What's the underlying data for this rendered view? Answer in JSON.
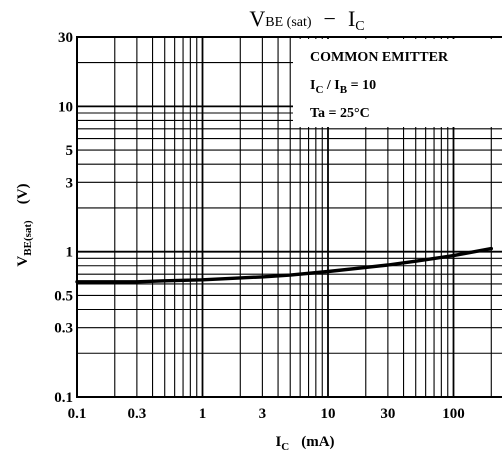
{
  "chart_data": {
    "type": "line",
    "title": {
      "main": "V",
      "main_sub": "BE (sat)",
      "dash": "−",
      "var": "I",
      "var_sub": "C"
    },
    "xlabel": {
      "main": "I",
      "sub": "C",
      "unit": "(mA)"
    },
    "ylabel": {
      "main": "V",
      "sub": "BE(sat)",
      "unit": "(V)"
    },
    "x_scale": "log",
    "y_scale": "log",
    "xlim": [
      0.1,
      200
    ],
    "ylim": [
      0.1,
      30
    ],
    "x_ticks": [
      {
        "value": 0.1,
        "label": "0.1"
      },
      {
        "value": 0.3,
        "label": "0.3"
      },
      {
        "value": 1,
        "label": "1"
      },
      {
        "value": 3,
        "label": "3"
      },
      {
        "value": 10,
        "label": "10"
      },
      {
        "value": 30,
        "label": "30"
      },
      {
        "value": 100,
        "label": "100"
      }
    ],
    "y_ticks": [
      {
        "value": 0.1,
        "label": "0.1"
      },
      {
        "value": 0.3,
        "label": "0.3"
      },
      {
        "value": 0.5,
        "label": "0.5"
      },
      {
        "value": 1,
        "label": "1"
      },
      {
        "value": 3,
        "label": "3"
      },
      {
        "value": 5,
        "label": "5"
      },
      {
        "value": 10,
        "label": "10"
      },
      {
        "value": 30,
        "label": "30"
      }
    ],
    "grid": true,
    "annotations": {
      "line1": "COMMON EMITTER",
      "line2": {
        "a": "I",
        "a_sub": "C",
        "slash": " / I",
        "b_sub": "B",
        "rest": " = 10"
      },
      "line3": "Ta = 25°C"
    },
    "legend_position": "top-right",
    "series": [
      {
        "x": [
          0.1,
          0.2,
          0.3,
          0.5,
          1,
          2,
          3,
          5,
          10,
          20,
          30,
          50,
          100,
          200
        ],
        "y": [
          0.62,
          0.62,
          0.62,
          0.63,
          0.64,
          0.66,
          0.67,
          0.69,
          0.73,
          0.78,
          0.81,
          0.86,
          0.94,
          1.05
        ]
      }
    ]
  }
}
